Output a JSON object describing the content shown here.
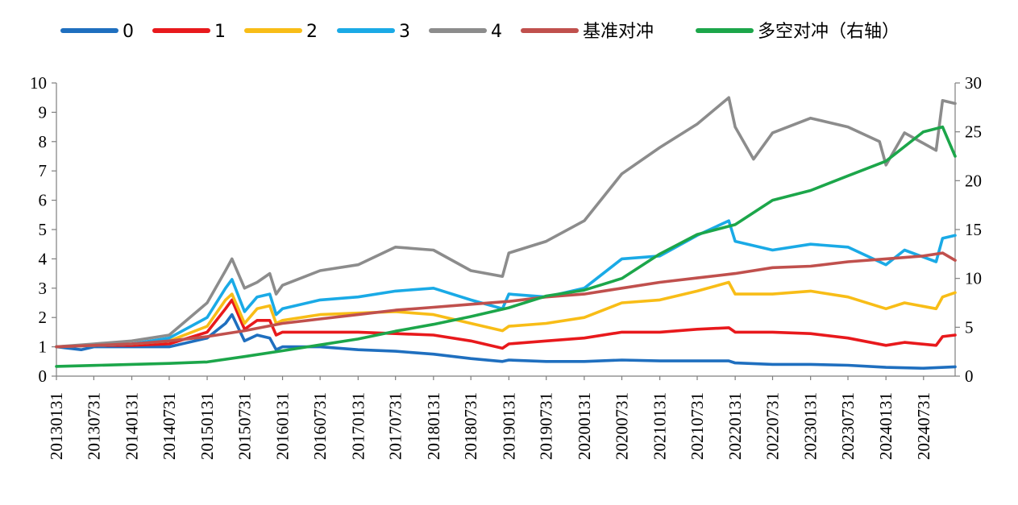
{
  "chart_data": {
    "type": "line",
    "title": "",
    "xlabel": "",
    "ylabel": "",
    "ylim": [
      0,
      10
    ],
    "y2lim": [
      0,
      30
    ],
    "yticks": [
      0,
      1,
      2,
      3,
      4,
      5,
      6,
      7,
      8,
      9,
      10
    ],
    "y2ticks": [
      0,
      5,
      10,
      15,
      20,
      25,
      30
    ],
    "grid": false,
    "legend_position": "top",
    "x_dates": [
      "2013-01-31",
      "2024-12-31"
    ],
    "xtick_labels": [
      "20130131",
      "20130731",
      "20140131",
      "20140731",
      "20150131",
      "20150731",
      "20160131",
      "20160731",
      "20170131",
      "20170731",
      "20180131",
      "20180731",
      "20190131",
      "20190731",
      "20200131",
      "20200731",
      "20210131",
      "20210731",
      "20220131",
      "20220731",
      "20230131",
      "20230731",
      "20240131",
      "20240731"
    ],
    "series": [
      {
        "name": "0",
        "color": "#1f6fbf",
        "axis": "left",
        "points": [
          [
            "20130131",
            1.0
          ],
          [
            "20130531",
            0.9
          ],
          [
            "20130731",
            1.0
          ],
          [
            "20140131",
            1.0
          ],
          [
            "20140731",
            1.0
          ],
          [
            "20150131",
            1.3
          ],
          [
            "20150430",
            1.8
          ],
          [
            "20150531",
            2.1
          ],
          [
            "20150731",
            1.2
          ],
          [
            "20150930",
            1.4
          ],
          [
            "20151130",
            1.3
          ],
          [
            "20151231",
            0.9
          ],
          [
            "20160131",
            1.0
          ],
          [
            "20160731",
            1.0
          ],
          [
            "20170131",
            0.9
          ],
          [
            "20170731",
            0.85
          ],
          [
            "20180131",
            0.75
          ],
          [
            "20180731",
            0.6
          ],
          [
            "20181231",
            0.5
          ],
          [
            "20190131",
            0.55
          ],
          [
            "20190731",
            0.5
          ],
          [
            "20200131",
            0.5
          ],
          [
            "20200731",
            0.55
          ],
          [
            "20210131",
            0.52
          ],
          [
            "20210731",
            0.52
          ],
          [
            "20211231",
            0.52
          ],
          [
            "20220131",
            0.45
          ],
          [
            "20220731",
            0.4
          ],
          [
            "20230131",
            0.4
          ],
          [
            "20230731",
            0.37
          ],
          [
            "20240131",
            0.3
          ],
          [
            "20240731",
            0.27
          ],
          [
            "20241231",
            0.32
          ]
        ]
      },
      {
        "name": "1",
        "color": "#e8191c",
        "axis": "left",
        "points": [
          [
            "20130131",
            1.0
          ],
          [
            "20130731",
            1.05
          ],
          [
            "20140131",
            1.05
          ],
          [
            "20140731",
            1.1
          ],
          [
            "20150131",
            1.5
          ],
          [
            "20150430",
            2.3
          ],
          [
            "20150531",
            2.6
          ],
          [
            "20150731",
            1.6
          ],
          [
            "20150930",
            1.9
          ],
          [
            "20151130",
            1.9
          ],
          [
            "20151231",
            1.4
          ],
          [
            "20160131",
            1.5
          ],
          [
            "20160731",
            1.5
          ],
          [
            "20170131",
            1.5
          ],
          [
            "20170731",
            1.45
          ],
          [
            "20180131",
            1.4
          ],
          [
            "20180731",
            1.2
          ],
          [
            "20181231",
            0.95
          ],
          [
            "20190131",
            1.1
          ],
          [
            "20190731",
            1.2
          ],
          [
            "20200131",
            1.3
          ],
          [
            "20200731",
            1.5
          ],
          [
            "20210131",
            1.5
          ],
          [
            "20210731",
            1.6
          ],
          [
            "20211231",
            1.65
          ],
          [
            "20220131",
            1.5
          ],
          [
            "20220731",
            1.5
          ],
          [
            "20230131",
            1.45
          ],
          [
            "20230731",
            1.3
          ],
          [
            "20240131",
            1.05
          ],
          [
            "20240430",
            1.15
          ],
          [
            "20240930",
            1.05
          ],
          [
            "20241031",
            1.35
          ],
          [
            "20241231",
            1.4
          ]
        ]
      },
      {
        "name": "2",
        "color": "#f8bd17",
        "axis": "left",
        "points": [
          [
            "20130131",
            1.0
          ],
          [
            "20130731",
            1.05
          ],
          [
            "20140131",
            1.1
          ],
          [
            "20140731",
            1.2
          ],
          [
            "20150131",
            1.7
          ],
          [
            "20150430",
            2.6
          ],
          [
            "20150531",
            2.8
          ],
          [
            "20150731",
            1.8
          ],
          [
            "20150930",
            2.3
          ],
          [
            "20151130",
            2.4
          ],
          [
            "20151231",
            1.8
          ],
          [
            "20160131",
            1.9
          ],
          [
            "20160731",
            2.1
          ],
          [
            "20170131",
            2.15
          ],
          [
            "20170731",
            2.2
          ],
          [
            "20180131",
            2.1
          ],
          [
            "20180731",
            1.8
          ],
          [
            "20181231",
            1.55
          ],
          [
            "20190131",
            1.7
          ],
          [
            "20190731",
            1.8
          ],
          [
            "20200131",
            2.0
          ],
          [
            "20200731",
            2.5
          ],
          [
            "20210131",
            2.6
          ],
          [
            "20210731",
            2.9
          ],
          [
            "20211231",
            3.2
          ],
          [
            "20220131",
            2.8
          ],
          [
            "20220731",
            2.8
          ],
          [
            "20230131",
            2.9
          ],
          [
            "20230731",
            2.7
          ],
          [
            "20240131",
            2.3
          ],
          [
            "20240430",
            2.5
          ],
          [
            "20240930",
            2.3
          ],
          [
            "20241031",
            2.7
          ],
          [
            "20241231",
            2.85
          ]
        ]
      },
      {
        "name": "3",
        "color": "#1aaae6",
        "axis": "left",
        "points": [
          [
            "20130131",
            1.0
          ],
          [
            "20130731",
            1.05
          ],
          [
            "20140131",
            1.1
          ],
          [
            "20140731",
            1.3
          ],
          [
            "20150131",
            2.0
          ],
          [
            "20150430",
            3.0
          ],
          [
            "20150531",
            3.3
          ],
          [
            "20150731",
            2.2
          ],
          [
            "20150930",
            2.7
          ],
          [
            "20151130",
            2.8
          ],
          [
            "20151231",
            2.1
          ],
          [
            "20160131",
            2.3
          ],
          [
            "20160731",
            2.6
          ],
          [
            "20170131",
            2.7
          ],
          [
            "20170731",
            2.9
          ],
          [
            "20180131",
            3.0
          ],
          [
            "20180731",
            2.6
          ],
          [
            "20181231",
            2.3
          ],
          [
            "20190131",
            2.8
          ],
          [
            "20190731",
            2.7
          ],
          [
            "20200131",
            3.0
          ],
          [
            "20200731",
            4.0
          ],
          [
            "20210131",
            4.1
          ],
          [
            "20210731",
            4.8
          ],
          [
            "20211231",
            5.3
          ],
          [
            "20220131",
            4.6
          ],
          [
            "20220731",
            4.3
          ],
          [
            "20230131",
            4.5
          ],
          [
            "20230731",
            4.4
          ],
          [
            "20240131",
            3.8
          ],
          [
            "20240430",
            4.3
          ],
          [
            "20240930",
            3.9
          ],
          [
            "20241031",
            4.7
          ],
          [
            "20241231",
            4.8
          ]
        ]
      },
      {
        "name": "4",
        "color": "#8c8c8c",
        "axis": "left",
        "points": [
          [
            "20130131",
            1.0
          ],
          [
            "20130731",
            1.1
          ],
          [
            "20140131",
            1.2
          ],
          [
            "20140731",
            1.4
          ],
          [
            "20150131",
            2.5
          ],
          [
            "20150430",
            3.6
          ],
          [
            "20150531",
            4.0
          ],
          [
            "20150731",
            3.0
          ],
          [
            "20150930",
            3.2
          ],
          [
            "20151130",
            3.5
          ],
          [
            "20151231",
            2.8
          ],
          [
            "20160131",
            3.1
          ],
          [
            "20160731",
            3.6
          ],
          [
            "20170131",
            3.8
          ],
          [
            "20170731",
            4.4
          ],
          [
            "20180131",
            4.3
          ],
          [
            "20180731",
            3.6
          ],
          [
            "20181231",
            3.4
          ],
          [
            "20190131",
            4.2
          ],
          [
            "20190731",
            4.6
          ],
          [
            "20200131",
            5.3
          ],
          [
            "20200731",
            6.9
          ],
          [
            "20210131",
            7.8
          ],
          [
            "20210731",
            8.6
          ],
          [
            "20211231",
            9.5
          ],
          [
            "20220131",
            8.5
          ],
          [
            "20220430",
            7.4
          ],
          [
            "20220731",
            8.3
          ],
          [
            "20230131",
            8.8
          ],
          [
            "20230731",
            8.5
          ],
          [
            "20231231",
            8.0
          ],
          [
            "20240131",
            7.2
          ],
          [
            "20240430",
            8.3
          ],
          [
            "20240930",
            7.7
          ],
          [
            "20241031",
            9.4
          ],
          [
            "20241231",
            9.3
          ]
        ]
      },
      {
        "name": "基准对冲",
        "color": "#c0504d",
        "axis": "left",
        "points": [
          [
            "20130131",
            1.0
          ],
          [
            "20130731",
            1.05
          ],
          [
            "20140131",
            1.1
          ],
          [
            "20140731",
            1.2
          ],
          [
            "20150131",
            1.35
          ],
          [
            "20150731",
            1.55
          ],
          [
            "20160131",
            1.8
          ],
          [
            "20160731",
            1.95
          ],
          [
            "20170131",
            2.1
          ],
          [
            "20170731",
            2.25
          ],
          [
            "20180131",
            2.35
          ],
          [
            "20180731",
            2.45
          ],
          [
            "20190131",
            2.55
          ],
          [
            "20190731",
            2.7
          ],
          [
            "20200131",
            2.8
          ],
          [
            "20200731",
            3.0
          ],
          [
            "20210131",
            3.2
          ],
          [
            "20210731",
            3.35
          ],
          [
            "20220131",
            3.5
          ],
          [
            "20220731",
            3.7
          ],
          [
            "20230131",
            3.75
          ],
          [
            "20230731",
            3.9
          ],
          [
            "20240131",
            4.0
          ],
          [
            "20240730",
            4.1
          ],
          [
            "20241031",
            4.2
          ],
          [
            "20241231",
            3.95
          ]
        ]
      },
      {
        "name": "多空对冲（右轴）",
        "color": "#1ca64a",
        "axis": "right",
        "points": [
          [
            "20130131",
            1.0
          ],
          [
            "20130731",
            1.1
          ],
          [
            "20140131",
            1.2
          ],
          [
            "20140731",
            1.3
          ],
          [
            "20150131",
            1.45
          ],
          [
            "20150731",
            2.0
          ],
          [
            "20160131",
            2.6
          ],
          [
            "20160731",
            3.2
          ],
          [
            "20170131",
            3.8
          ],
          [
            "20170731",
            4.6
          ],
          [
            "20180131",
            5.3
          ],
          [
            "20180731",
            6.1
          ],
          [
            "20190131",
            7.0
          ],
          [
            "20190731",
            8.2
          ],
          [
            "20200131",
            8.8
          ],
          [
            "20200731",
            10.0
          ],
          [
            "20210131",
            12.5
          ],
          [
            "20210731",
            14.5
          ],
          [
            "20220131",
            15.5
          ],
          [
            "20220731",
            18.0
          ],
          [
            "20230131",
            19.0
          ],
          [
            "20230731",
            20.5
          ],
          [
            "20240131",
            22.0
          ],
          [
            "20240730",
            25.0
          ],
          [
            "20241031",
            25.5
          ],
          [
            "20241231",
            22.5
          ]
        ]
      }
    ]
  }
}
